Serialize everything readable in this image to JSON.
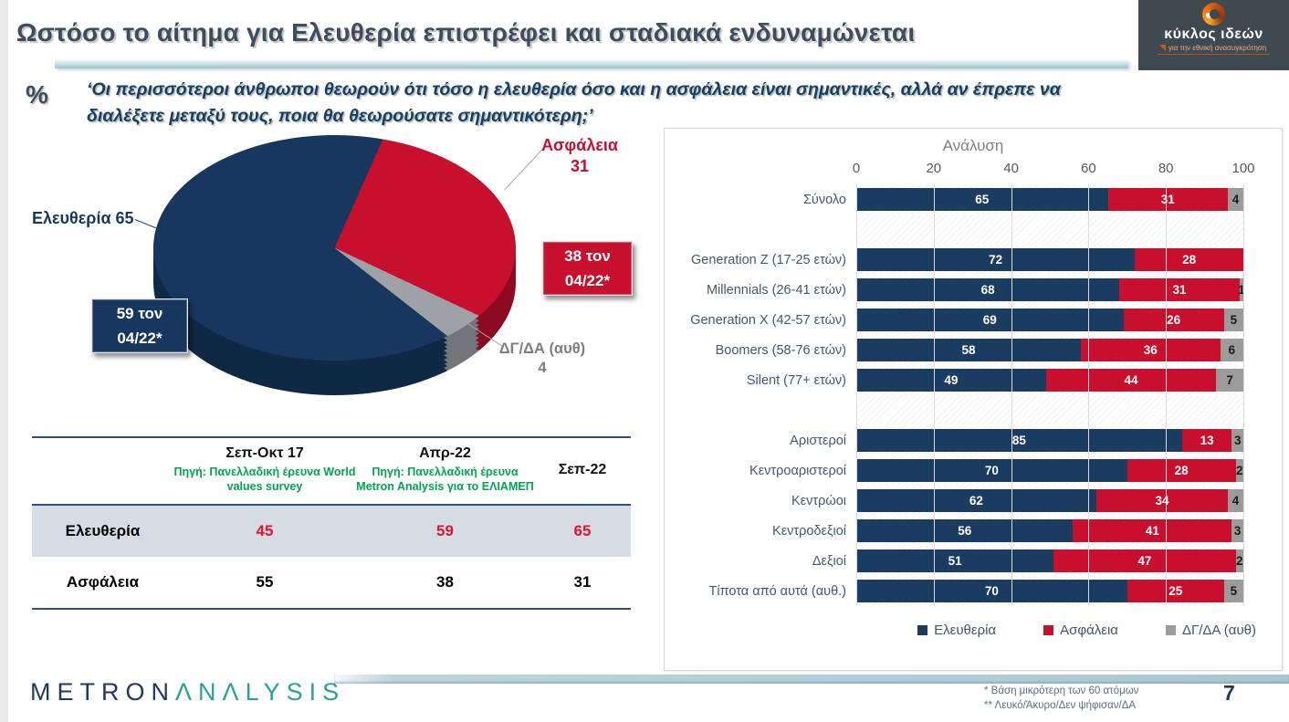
{
  "slide": {
    "title": "Ωστόσο το αίτημα για Ελευθερία επιστρέφει και σταδιακά ενδυναμώνεται",
    "percent_symbol": "%",
    "question": "‘Οι περισσότεροι άνθρωποι θεωρούν ότι τόσο η ελευθερία όσο και η ασφάλεια είναι σημαντικές, αλλά αν έπρεπε να διαλέξετε μεταξύ τους, ποια θα θεωρούσατε σημαντικότερη;’",
    "page_number": "7",
    "footnotes": [
      "*  Βάση μικρότερη των 60 ατόμων",
      "** Λευκό/Άκυρο/Δεν ψήφισαν/ΔΑ"
    ]
  },
  "logos": {
    "kyklos": {
      "name": "κύκλος ιδεών",
      "tagline": "για την εθνική ανασυγκρότηση"
    },
    "metron": {
      "part1": "METRON",
      "part2": "ΛNΛLYSIS"
    }
  },
  "pie": {
    "label_eleftheria": "Ελευθερία 65",
    "label_asfaleia": "Ασφάλεια",
    "value_asfaleia": "31",
    "label_dgda": "ΔΓ/ΔΑ (αυθ)",
    "value_dgda": "4",
    "callout_eleftheria": {
      "line1": "59 τον",
      "line2": "04/22*"
    },
    "callout_asfaleia": {
      "line1": "38 τον",
      "line2": "04/22*"
    }
  },
  "chart_data": [
    {
      "type": "pie",
      "labels": [
        "Ελευθερία",
        "Ασφάλεια",
        "ΔΓ/ΔΑ (αυθ)"
      ],
      "values": [
        65,
        31,
        4
      ],
      "colors": [
        "#17375e",
        "#c8102e",
        "#9ea1a5"
      ],
      "side_colors": [
        "#0f2844",
        "#8d0b20",
        "#72767a"
      ],
      "annotations": [
        "59 τον 04/22*",
        "38 τον 04/22*"
      ]
    },
    {
      "type": "bar",
      "orientation": "horizontal",
      "stacked": true,
      "title": "Ανάλυση",
      "xlim": [
        0,
        100
      ],
      "xticks": [
        0,
        20,
        40,
        60,
        80,
        100
      ],
      "grid": true,
      "legend_position": "bottom",
      "categories": [
        "Σύνολο",
        "Generation Z (17-25 ετών)",
        "Millennials (26-41 ετών)",
        "Generation X (42-57 ετών)",
        "Boomers (58-76 ετών)",
        "Silent (77+ ετών)",
        "Αριστεροί",
        "Κεντροαριστεροί",
        "Κεντρώοι",
        "Κεντροδεξιοί",
        "Δεξιοί",
        "Τίποτα από αυτά (αυθ.)"
      ],
      "series": [
        {
          "name": "Ελευθερία",
          "values": [
            65,
            72,
            68,
            69,
            58,
            49,
            85,
            70,
            62,
            56,
            51,
            70
          ]
        },
        {
          "name": "Ασφάλεια",
          "values": [
            31,
            28,
            31,
            26,
            36,
            44,
            13,
            28,
            34,
            41,
            47,
            25
          ]
        },
        {
          "name": "ΔΓ/ΔΑ (αυθ)",
          "values": [
            4,
            0,
            1,
            5,
            6,
            7,
            3,
            2,
            4,
            3,
            2,
            5
          ]
        }
      ],
      "colors": [
        "#1b3c61",
        "#c8102e",
        "#9b9b9b"
      ]
    },
    {
      "type": "table",
      "columns": [
        "",
        "Σεπ-Οκτ 17",
        "Απρ-22",
        "Σεπ-22"
      ],
      "column_sources": [
        "",
        "Πηγή: Πανελλαδική έρευνα World values survey",
        "Πηγή: Πανελλαδική έρευνα Metron Analysis για το ΕΛΙΑΜΕΠ",
        ""
      ],
      "rows": [
        {
          "label": "Ελευθερία",
          "values": [
            45,
            59,
            65
          ],
          "accent": true
        },
        {
          "label": "Ασφάλεια",
          "values": [
            55,
            38,
            31
          ],
          "accent": false
        }
      ],
      "accent_color": "#e8112d"
    }
  ]
}
